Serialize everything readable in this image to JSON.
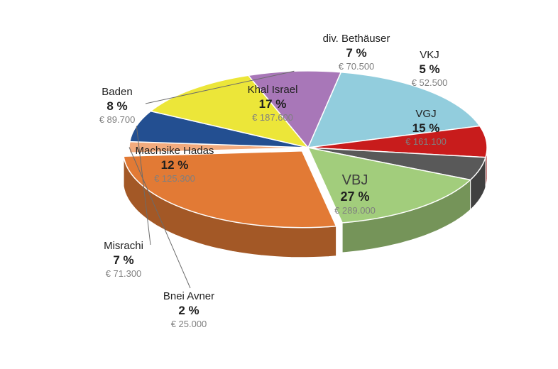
{
  "chart_data": {
    "type": "pie",
    "title": "",
    "slices": [
      {
        "name": "VBJ",
        "percent": "27 %",
        "amount": "€ 289.000",
        "value": 289000,
        "color": "#e27a35"
      },
      {
        "name": "Bnei Avner",
        "percent": "2 %",
        "amount": "€ 25.000",
        "value": 25000,
        "color": "#f2ab7e"
      },
      {
        "name": "Misrachi",
        "percent": "7 %",
        "amount": "€ 71.300",
        "value": 71300,
        "color": "#234f91"
      },
      {
        "name": "Machsike Hadas",
        "percent": "12 %",
        "amount": "€ 125.300",
        "value": 125300,
        "color": "#ece639"
      },
      {
        "name": "Baden",
        "percent": "8 %",
        "amount": "€ 89.700",
        "value": 89700,
        "color": "#a877b8"
      },
      {
        "name": "Khal Israel",
        "percent": "17 %",
        "amount": "€ 187.600",
        "value": 187600,
        "color": "#92cddd"
      },
      {
        "name": "div. Bethäuser",
        "percent": "7 %",
        "amount": "€ 70.500",
        "value": 70500,
        "color": "#c81c1c"
      },
      {
        "name": "VKJ",
        "percent": "5 %",
        "amount": "€ 52.500",
        "value": 52500,
        "color": "#595959"
      },
      {
        "name": "VGJ",
        "percent": "15 %",
        "amount": "€ 161.100",
        "value": 161100,
        "color": "#a2cd7c"
      }
    ]
  }
}
